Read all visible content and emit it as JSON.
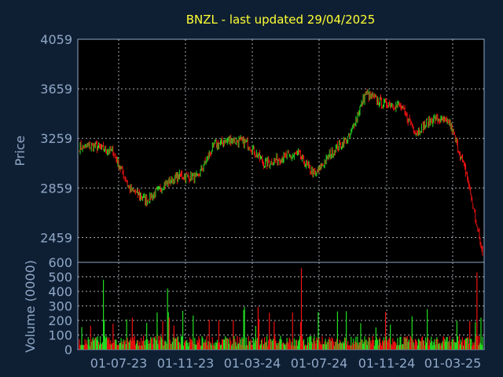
{
  "chart_data": [
    {
      "type": "candlestick",
      "title": "BNZL - last updated 29/04/2025",
      "ylabel": "Price",
      "ylim": [
        2259,
        4059
      ],
      "ytick_labels": [
        "4059",
        "3659",
        "3259",
        "2859",
        "2459"
      ],
      "xtick_labels": [
        "01-07-23",
        "01-11-23",
        "01-03-24",
        "01-07-24",
        "01-11-24",
        "01-03-25"
      ],
      "colors": {
        "up": "#22dd22",
        "down": "#ee1111"
      },
      "series_by_month": [
        {
          "month": "2023-05",
          "close": 3190
        },
        {
          "month": "2023-06",
          "close": 3150
        },
        {
          "month": "2023-07",
          "close": 2850
        },
        {
          "month": "2023-08",
          "close": 2760
        },
        {
          "month": "2023-09",
          "close": 2880
        },
        {
          "month": "2023-10",
          "close": 2960
        },
        {
          "month": "2023-11",
          "close": 2940
        },
        {
          "month": "2023-12",
          "close": 3200
        },
        {
          "month": "2024-01",
          "close": 3250
        },
        {
          "month": "2024-02",
          "close": 3220
        },
        {
          "month": "2024-03",
          "close": 3050
        },
        {
          "month": "2024-04",
          "close": 3100
        },
        {
          "month": "2024-05",
          "close": 3130
        },
        {
          "month": "2024-06",
          "close": 2960
        },
        {
          "month": "2024-07",
          "close": 3150
        },
        {
          "month": "2024-08",
          "close": 3260
        },
        {
          "month": "2024-09",
          "close": 3620
        },
        {
          "month": "2024-10",
          "close": 3540
        },
        {
          "month": "2024-11",
          "close": 3530
        },
        {
          "month": "2024-12",
          "close": 3310
        },
        {
          "month": "2025-01",
          "close": 3420
        },
        {
          "month": "2025-02",
          "close": 3380
        },
        {
          "month": "2025-03",
          "close": 2970
        },
        {
          "month": "2025-04",
          "close": 2290
        }
      ]
    },
    {
      "type": "bar",
      "ylabel": "Volume (0000)",
      "ylim": [
        0,
        600
      ],
      "ytick_labels": [
        "600",
        "500",
        "400",
        "300",
        "200",
        "100",
        "0"
      ],
      "xtick_labels": [
        "01-07-23",
        "01-11-23",
        "01-03-24",
        "01-07-24",
        "01-11-24",
        "01-03-25"
      ],
      "typical_volume": 60,
      "peak_volumes": [
        480,
        420,
        560,
        530
      ]
    }
  ]
}
